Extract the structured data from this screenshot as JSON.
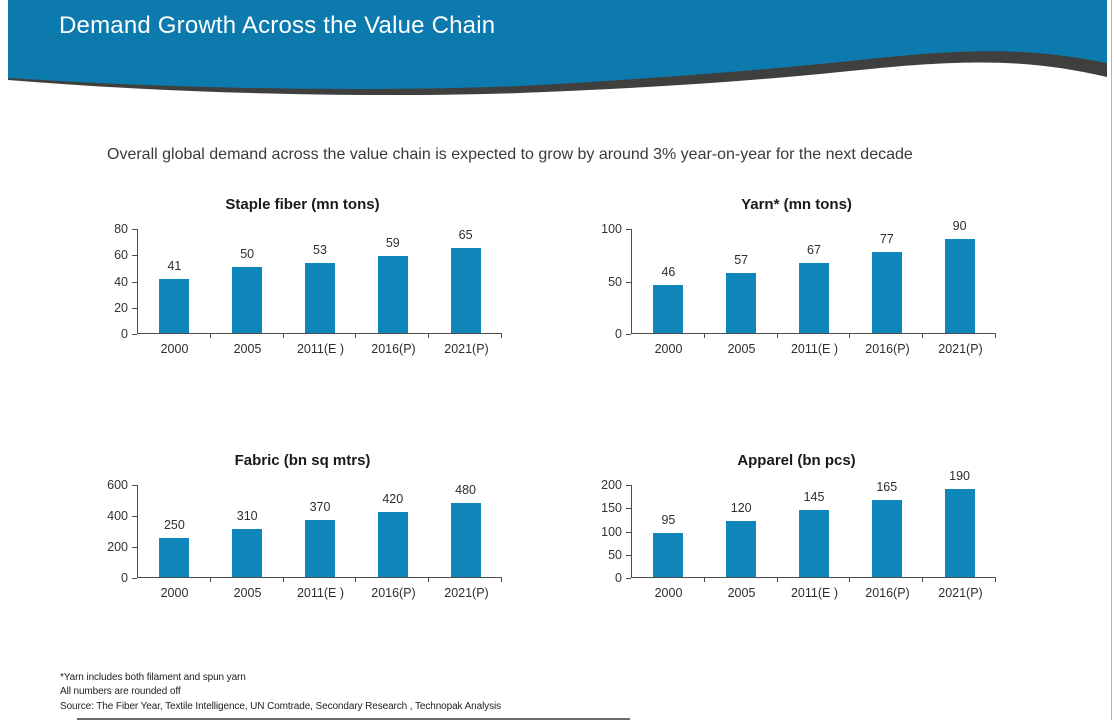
{
  "slide": {
    "title": "Demand Growth Across the Value Chain",
    "subtitle": "Overall global demand across the value chain is expected to grow by around 3% year-on-year for the next decade",
    "footnotes": [
      "*Yarn includes both filament and spun yarn",
      "All numbers are rounded off",
      "Source: The Fiber Year, Textile Intelligence, UN Comtrade, Secondary Research , Technopak Analysis"
    ],
    "colors": {
      "header_blue": "#0d7aad",
      "wave_dark": "#3f3f3d",
      "bar_blue": "#0e86ba",
      "axis": "#4d4d4d"
    }
  },
  "chart_data": [
    {
      "type": "bar",
      "title": "Staple fiber (mn tons)",
      "categories": [
        "2000",
        "2005",
        "2011(E )",
        "2016(P)",
        "2021(P)"
      ],
      "values": [
        41,
        50,
        53,
        59,
        65
      ],
      "xlabel": "",
      "ylabel": "",
      "ylim": [
        0,
        80
      ],
      "yticks": [
        0,
        20,
        40,
        60,
        80
      ],
      "grid": false,
      "legend": false
    },
    {
      "type": "bar",
      "title": "Yarn* (mn tons)",
      "categories": [
        "2000",
        "2005",
        "2011(E )",
        "2016(P)",
        "2021(P)"
      ],
      "values": [
        46,
        57,
        67,
        77,
        90
      ],
      "xlabel": "",
      "ylabel": "",
      "ylim": [
        0,
        100
      ],
      "yticks": [
        0,
        50,
        100
      ],
      "grid": false,
      "legend": false
    },
    {
      "type": "bar",
      "title": "Fabric (bn sq mtrs)",
      "categories": [
        "2000",
        "2005",
        "2011(E )",
        "2016(P)",
        "2021(P)"
      ],
      "values": [
        250,
        310,
        370,
        420,
        480
      ],
      "xlabel": "",
      "ylabel": "",
      "ylim": [
        0,
        600
      ],
      "yticks": [
        0,
        200,
        400,
        600
      ],
      "grid": false,
      "legend": false
    },
    {
      "type": "bar",
      "title": "Apparel (bn pcs)",
      "categories": [
        "2000",
        "2005",
        "2011(E )",
        "2016(P)",
        "2021(P)"
      ],
      "values": [
        95,
        120,
        145,
        165,
        190
      ],
      "xlabel": "",
      "ylabel": "",
      "ylim": [
        0,
        200
      ],
      "yticks": [
        0,
        50,
        100,
        150,
        200
      ],
      "grid": false,
      "legend": false
    }
  ]
}
